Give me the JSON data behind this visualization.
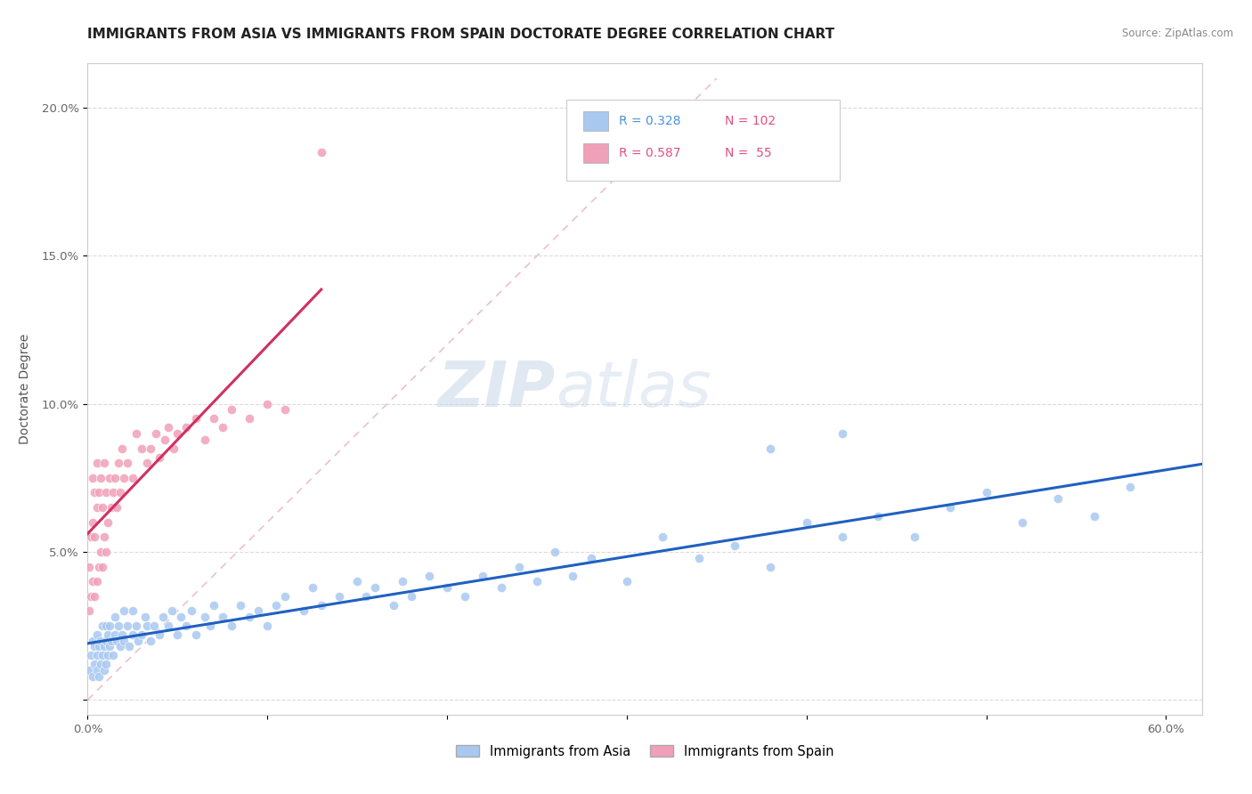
{
  "title": "IMMIGRANTS FROM ASIA VS IMMIGRANTS FROM SPAIN DOCTORATE DEGREE CORRELATION CHART",
  "source": "Source: ZipAtlas.com",
  "ylabel": "Doctorate Degree",
  "xlim": [
    0.0,
    0.62
  ],
  "ylim": [
    -0.005,
    0.215
  ],
  "xticks": [
    0.0,
    0.1,
    0.2,
    0.3,
    0.4,
    0.5,
    0.6
  ],
  "xticklabels": [
    "0.0%",
    "",
    "",
    "",
    "",
    "",
    "60.0%"
  ],
  "yticks": [
    0.0,
    0.05,
    0.1,
    0.15,
    0.2
  ],
  "yticklabels": [
    "",
    "5.0%",
    "10.0%",
    "15.0%",
    "20.0%"
  ],
  "asia_color": "#a8c8f0",
  "spain_color": "#f0a0b8",
  "asia_line_color": "#2060c0",
  "spain_line_color": "#d03060",
  "diag_line_color": "#e0b0c0",
  "asia_R": 0.328,
  "asia_N": 102,
  "spain_R": 0.587,
  "spain_N": 55,
  "watermark_zip": "ZIP",
  "watermark_atlas": "atlas",
  "background_color": "#ffffff",
  "grid_color": "#cccccc",
  "legend_text_color_blue": "#4a90d9",
  "legend_text_color_pink": "#e05080",
  "asia_scatter_x": [
    0.001,
    0.002,
    0.003,
    0.003,
    0.004,
    0.004,
    0.005,
    0.005,
    0.005,
    0.006,
    0.006,
    0.007,
    0.007,
    0.008,
    0.008,
    0.009,
    0.009,
    0.01,
    0.01,
    0.01,
    0.011,
    0.011,
    0.012,
    0.012,
    0.013,
    0.014,
    0.015,
    0.015,
    0.016,
    0.017,
    0.018,
    0.019,
    0.02,
    0.02,
    0.022,
    0.023,
    0.025,
    0.025,
    0.027,
    0.028,
    0.03,
    0.032,
    0.033,
    0.035,
    0.037,
    0.04,
    0.042,
    0.045,
    0.047,
    0.05,
    0.052,
    0.055,
    0.058,
    0.06,
    0.065,
    0.068,
    0.07,
    0.075,
    0.08,
    0.085,
    0.09,
    0.095,
    0.1,
    0.105,
    0.11,
    0.12,
    0.125,
    0.13,
    0.14,
    0.15,
    0.155,
    0.16,
    0.17,
    0.175,
    0.18,
    0.19,
    0.2,
    0.21,
    0.22,
    0.23,
    0.24,
    0.25,
    0.26,
    0.27,
    0.28,
    0.3,
    0.32,
    0.34,
    0.36,
    0.38,
    0.4,
    0.42,
    0.44,
    0.46,
    0.48,
    0.5,
    0.52,
    0.54,
    0.56,
    0.58,
    0.38,
    0.42
  ],
  "asia_scatter_y": [
    0.01,
    0.015,
    0.008,
    0.02,
    0.012,
    0.018,
    0.01,
    0.015,
    0.022,
    0.008,
    0.018,
    0.012,
    0.02,
    0.015,
    0.025,
    0.01,
    0.018,
    0.012,
    0.02,
    0.025,
    0.015,
    0.022,
    0.018,
    0.025,
    0.02,
    0.015,
    0.022,
    0.028,
    0.02,
    0.025,
    0.018,
    0.022,
    0.02,
    0.03,
    0.025,
    0.018,
    0.022,
    0.03,
    0.025,
    0.02,
    0.022,
    0.028,
    0.025,
    0.02,
    0.025,
    0.022,
    0.028,
    0.025,
    0.03,
    0.022,
    0.028,
    0.025,
    0.03,
    0.022,
    0.028,
    0.025,
    0.032,
    0.028,
    0.025,
    0.032,
    0.028,
    0.03,
    0.025,
    0.032,
    0.035,
    0.03,
    0.038,
    0.032,
    0.035,
    0.04,
    0.035,
    0.038,
    0.032,
    0.04,
    0.035,
    0.042,
    0.038,
    0.035,
    0.042,
    0.038,
    0.045,
    0.04,
    0.05,
    0.042,
    0.048,
    0.04,
    0.055,
    0.048,
    0.052,
    0.045,
    0.06,
    0.055,
    0.062,
    0.055,
    0.065,
    0.07,
    0.06,
    0.068,
    0.062,
    0.072,
    0.085,
    0.09
  ],
  "spain_scatter_x": [
    0.001,
    0.001,
    0.002,
    0.002,
    0.003,
    0.003,
    0.003,
    0.004,
    0.004,
    0.004,
    0.005,
    0.005,
    0.005,
    0.006,
    0.006,
    0.007,
    0.007,
    0.008,
    0.008,
    0.009,
    0.009,
    0.01,
    0.01,
    0.011,
    0.012,
    0.013,
    0.014,
    0.015,
    0.016,
    0.017,
    0.018,
    0.019,
    0.02,
    0.022,
    0.025,
    0.027,
    0.03,
    0.033,
    0.035,
    0.038,
    0.04,
    0.043,
    0.045,
    0.048,
    0.05,
    0.055,
    0.06,
    0.065,
    0.07,
    0.075,
    0.08,
    0.09,
    0.1,
    0.11,
    0.13
  ],
  "spain_scatter_y": [
    0.03,
    0.045,
    0.035,
    0.055,
    0.04,
    0.06,
    0.075,
    0.035,
    0.055,
    0.07,
    0.04,
    0.065,
    0.08,
    0.045,
    0.07,
    0.05,
    0.075,
    0.045,
    0.065,
    0.055,
    0.08,
    0.05,
    0.07,
    0.06,
    0.075,
    0.065,
    0.07,
    0.075,
    0.065,
    0.08,
    0.07,
    0.085,
    0.075,
    0.08,
    0.075,
    0.09,
    0.085,
    0.08,
    0.085,
    0.09,
    0.082,
    0.088,
    0.092,
    0.085,
    0.09,
    0.092,
    0.095,
    0.088,
    0.095,
    0.092,
    0.098,
    0.095,
    0.1,
    0.098,
    0.185
  ],
  "title_fontsize": 11,
  "tick_fontsize": 9.5
}
